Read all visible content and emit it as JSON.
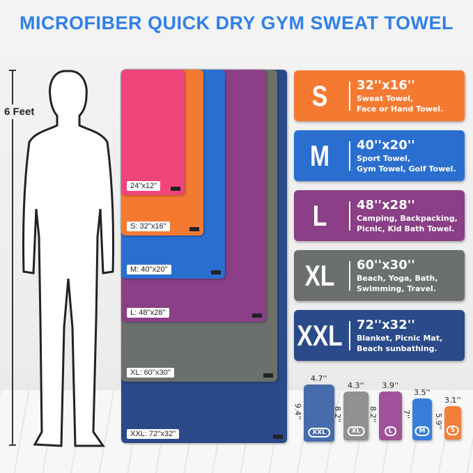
{
  "title": "MICROFIBER QUICK DRY GYM SWEAT TOWEL",
  "height_label": "6 Feet",
  "towels": [
    {
      "label": "XXL: 72''x32''",
      "color": "#2a4a8a"
    },
    {
      "label": "XL: 60''x30''",
      "color": "#6b706c"
    },
    {
      "label": "L: 48''x28''",
      "color": "#8b3f86"
    },
    {
      "label": "M: 40''x20''",
      "color": "#2a6fd0"
    },
    {
      "label": "S: 32''x16''",
      "color": "#f47a32"
    },
    {
      "label": "24''x12''",
      "color": "#f0457a"
    }
  ],
  "cards": [
    {
      "size": "S",
      "dims": "32''x16''",
      "uses": [
        "Sweat Towel,",
        "Face or Hand Towel."
      ],
      "color": "#f47a32"
    },
    {
      "size": "M",
      "dims": "40''x20''",
      "uses": [
        "Sport Towel,",
        "Gym Towel, Golf Towel."
      ],
      "color": "#2a6fd0"
    },
    {
      "size": "L",
      "dims": "48''x28''",
      "uses": [
        "Camping, Backpacking,",
        "Picnic, Kid Bath Towel."
      ],
      "color": "#8b3f86"
    },
    {
      "size": "XL",
      "dims": "60''x30''",
      "uses": [
        "Beach, Yoga, Bath,",
        "Swimming, Travel."
      ],
      "color": "#6b706c"
    },
    {
      "size": "XXL",
      "dims": "72''x32''",
      "uses": [
        "Blanket, Picnic Mat,",
        "Beach sunbathing."
      ],
      "color": "#2a4a8a"
    }
  ],
  "bags": [
    {
      "badge": "XXL",
      "width": "4.7''",
      "height": "9.4''",
      "color": "#3f65a8"
    },
    {
      "badge": "XL",
      "width": "4.3''",
      "height": "8.2''",
      "color": "#8a8d8c"
    },
    {
      "badge": "L",
      "width": "3.9''",
      "height": "8.2''",
      "color": "#9c4a96"
    },
    {
      "badge": "M",
      "width": "3.5''",
      "height": "7''",
      "color": "#2f78d6"
    },
    {
      "badge": "S",
      "width": "3.1''",
      "height": "5.9''",
      "color": "#f07a30"
    }
  ]
}
